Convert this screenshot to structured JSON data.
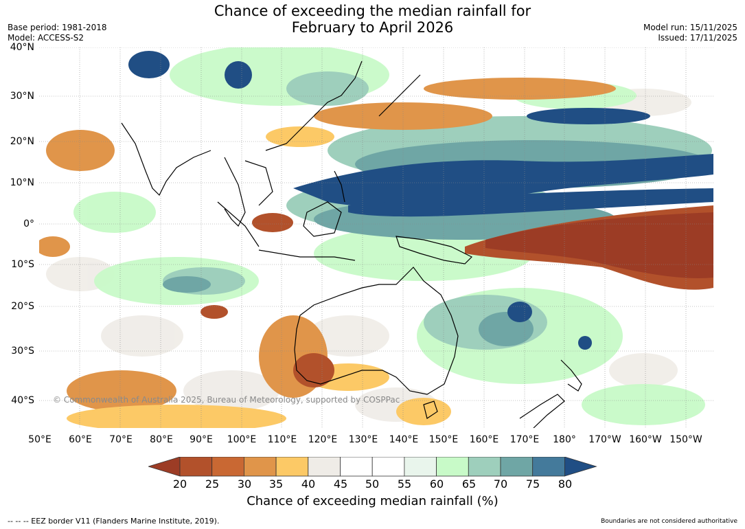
{
  "title": {
    "line1": "Chance of exceeding the median rainfall for",
    "line2": "February to April 2026"
  },
  "meta_left": {
    "base_period": "Base period: 1981-2018",
    "model": "Model: ACCESS-S2"
  },
  "meta_right": {
    "model_run": "Model run: 15/11/2025",
    "issued": "Issued: 17/11/2025"
  },
  "lat_labels": [
    "40°N",
    "30°N",
    "20°N",
    "10°N",
    "0°",
    "10°S",
    "20°S",
    "30°S",
    "40°S"
  ],
  "lon_labels": [
    "50°E",
    "60°E",
    "70°E",
    "80°E",
    "90°E",
    "100°E",
    "110°E",
    "120°E",
    "130°E",
    "140°E",
    "150°E",
    "160°E",
    "170°E",
    "180°",
    "170°W",
    "160°W",
    "150°W"
  ],
  "copyright": "© Commonwealth of Australia 2025, Bureau of Meteorology, supported by COSPPac",
  "colorbar": {
    "ticks": [
      "20",
      "25",
      "30",
      "35",
      "40",
      "45",
      "50",
      "55",
      "60",
      "65",
      "70",
      "75",
      "80"
    ],
    "colors": [
      "#9c3c25",
      "#b2512b",
      "#c96833",
      "#e0954a",
      "#fcc966",
      "#efece7",
      "#ffffff",
      "#ffffff",
      "#e9f5ec",
      "#c8fac8",
      "#9ecfbc",
      "#6fa6a5",
      "#447a9b",
      "#204e84"
    ],
    "label": "Chance of exceeding median rainfall (%)"
  },
  "footer": {
    "eez": "--  --  -- EEZ border V11 (Flanders Marine Institute, 2019).",
    "disclaimer": "Boundaries are not considered authoritative"
  }
}
